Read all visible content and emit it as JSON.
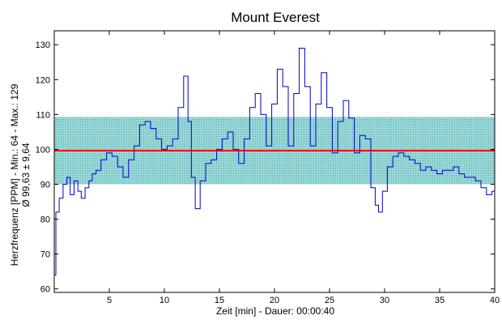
{
  "chart_data": {
    "type": "line",
    "title": "Mount Everest",
    "xlabel": "Zeit [min] - Dauer: 00:00:40",
    "ylabel_line1": "Herzfrequenz [PPM] - Min.: 64 - Max.: 129",
    "ylabel_line2": "Ø 99,63 ± 9,64",
    "xlim": [
      0,
      40
    ],
    "ylim": [
      59,
      134
    ],
    "x_ticks": [
      5,
      10,
      15,
      20,
      25,
      30,
      35,
      40
    ],
    "y_ticks": [
      60,
      70,
      80,
      90,
      100,
      110,
      120,
      130
    ],
    "mean": 99.63,
    "std_band": [
      90,
      109.3
    ],
    "colors": {
      "line": "#0000cc",
      "mean": "#ff0000",
      "band": "#80cccc"
    },
    "series": [
      {
        "x": [
          0,
          0.3,
          0.6,
          1,
          1.3,
          1.6,
          2,
          2.3,
          2.6,
          3,
          3.3,
          3.6,
          4,
          4.5,
          5,
          5.5,
          6,
          6.5,
          7,
          7.5,
          8,
          8.5,
          9,
          9.5,
          10,
          10.5,
          11,
          11.5,
          12,
          12.3,
          12.6,
          13,
          13.5,
          14,
          14.5,
          15,
          15.5,
          16,
          16.5,
          17,
          17.5,
          18,
          18.5,
          19,
          19.5,
          20,
          20.5,
          21,
          21.5,
          22,
          22.5,
          23,
          23.5,
          24,
          24.5,
          25,
          25.5,
          26,
          26.5,
          27,
          27.5,
          28,
          28.5,
          29,
          29.3,
          29.6,
          30,
          30.5,
          31,
          31.5,
          32,
          32.5,
          33,
          33.5,
          34,
          34.5,
          35,
          35.5,
          36,
          36.5,
          37,
          37.5,
          38,
          38.5,
          39,
          39.5,
          40
        ],
        "y": [
          64,
          82,
          86,
          90,
          92,
          87,
          91,
          88,
          86,
          89,
          91,
          93,
          94,
          97,
          99,
          98,
          95,
          92,
          97,
          101,
          107,
          108,
          106,
          103,
          100,
          101,
          103,
          112,
          121,
          108,
          92,
          83,
          91,
          96,
          97,
          100,
          103,
          105,
          100,
          96,
          103,
          112,
          116,
          110,
          101,
          113,
          123,
          118,
          101,
          116,
          129,
          118,
          101,
          113,
          122,
          112,
          99,
          108,
          114,
          109,
          99,
          104,
          103,
          89,
          84,
          82,
          88,
          95,
          98,
          99,
          98,
          97,
          96,
          94,
          95,
          94,
          93,
          94,
          94,
          95,
          93,
          92,
          92,
          91,
          89,
          87,
          88
        ]
      }
    ]
  }
}
